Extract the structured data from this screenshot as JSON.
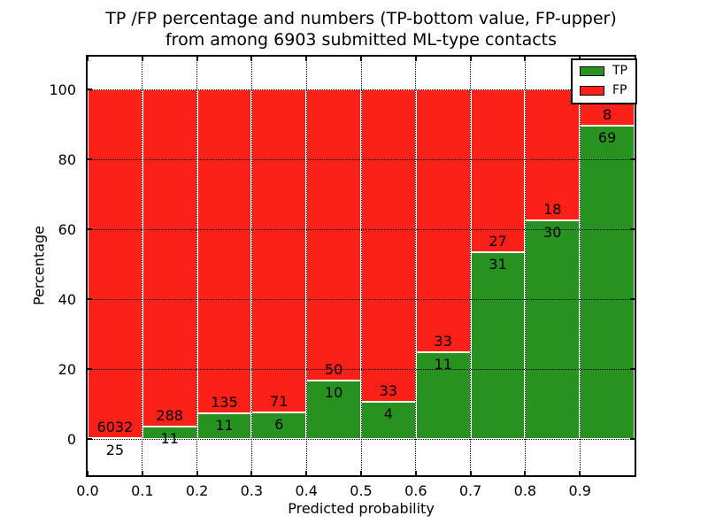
{
  "figure": {
    "title_line1": "TP /FP percentage and numbers (TP-bottom value, FP-upper)",
    "title_line2": "from among 6903 submitted ML-type contacts"
  },
  "chart_data": {
    "type": "bar",
    "stacked": true,
    "title": "TP /FP percentage and numbers (TP-bottom value, FP-upper) from among 6903 submitted ML-type contacts",
    "xlabel": "Predicted probability",
    "ylabel": "Percentage",
    "total_contacts": 6903,
    "bin_edges": [
      0.0,
      0.1,
      0.2,
      0.3,
      0.4,
      0.5,
      0.6,
      0.7,
      0.8,
      0.9,
      1.0
    ],
    "xtick_labels": [
      "0.0",
      "0.1",
      "0.2",
      "0.3",
      "0.4",
      "0.5",
      "0.6",
      "0.7",
      "0.8",
      "0.9"
    ],
    "yticks": [
      0,
      20,
      40,
      60,
      80,
      100
    ],
    "xlim": [
      0,
      1
    ],
    "ylim": [
      -10,
      110
    ],
    "grid": "dotted",
    "legend": {
      "position": "upper right"
    },
    "series": [
      {
        "name": "TP",
        "color": "#27921f",
        "counts": [
          25,
          11,
          11,
          6,
          10,
          4,
          11,
          31,
          30,
          69
        ],
        "percent": [
          0.41,
          3.68,
          7.53,
          7.79,
          16.67,
          10.81,
          25.0,
          53.45,
          62.5,
          89.61
        ]
      },
      {
        "name": "FP",
        "color": "#fb2018",
        "counts": [
          6032,
          288,
          135,
          71,
          50,
          33,
          33,
          27,
          18,
          8
        ],
        "percent": [
          99.59,
          96.32,
          92.47,
          92.21,
          83.33,
          89.19,
          75.0,
          46.55,
          37.5,
          10.39
        ]
      }
    ]
  }
}
